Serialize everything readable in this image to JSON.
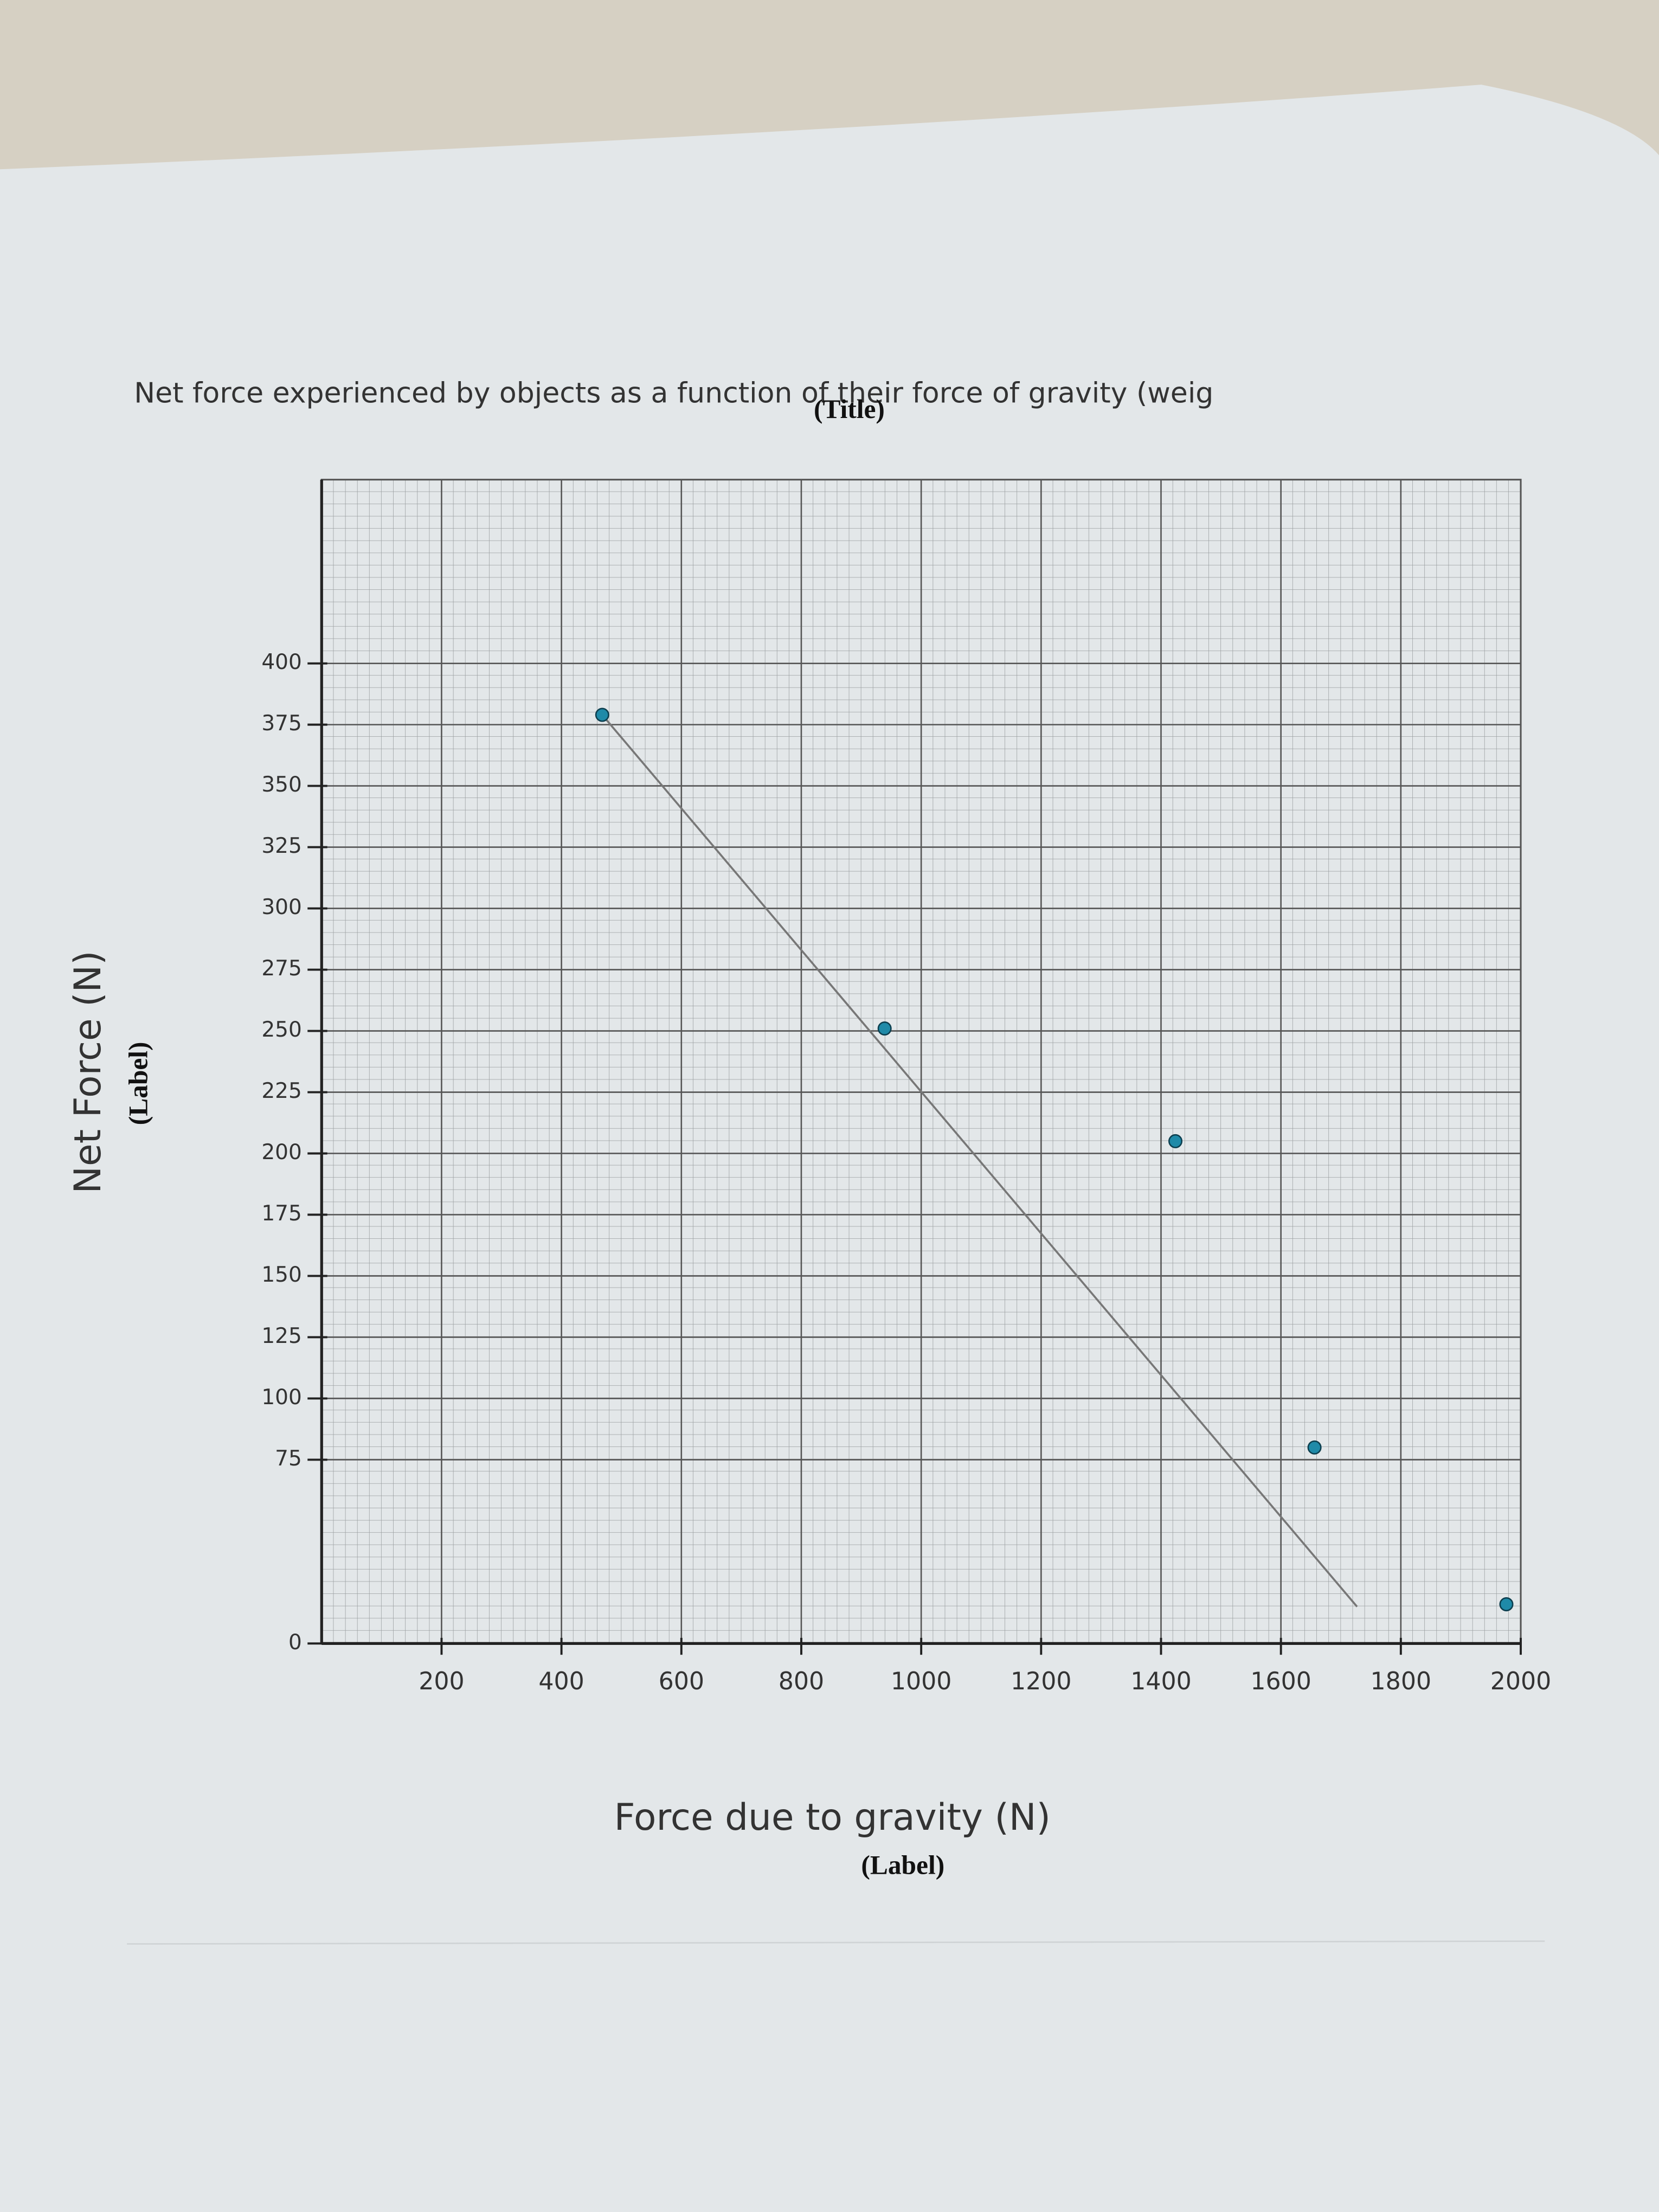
{
  "chart_data": {
    "type": "scatter",
    "title": "Net force experienced by objects as a function of their force of gravity (weig",
    "title_caption": "(Title)",
    "x_label": "Force due to gravity (N)",
    "x_label_caption": "(Label)",
    "y_label": "Net Force (N)",
    "y_label_caption": "(Label)",
    "series": [
      {
        "x": [
          468,
          939,
          1424,
          1656,
          1976
        ],
        "values": [
          379,
          251,
          205,
          80,
          16
        ],
        "color": "#1f8aa8"
      }
    ],
    "trendline": {
      "x": [
        468,
        1727
      ],
      "values": [
        379,
        15
      ],
      "color": "#777777"
    },
    "xlim": [
      0,
      2000
    ],
    "xticks": [
      200,
      400,
      600,
      800,
      1000,
      1200,
      1400,
      1600,
      1800,
      2000
    ],
    "ylim": [
      0,
      475
    ],
    "yticks": [
      0,
      75,
      100,
      125,
      150,
      175,
      200,
      225,
      250,
      275,
      300,
      325,
      350,
      375,
      400
    ],
    "grid": true
  }
}
